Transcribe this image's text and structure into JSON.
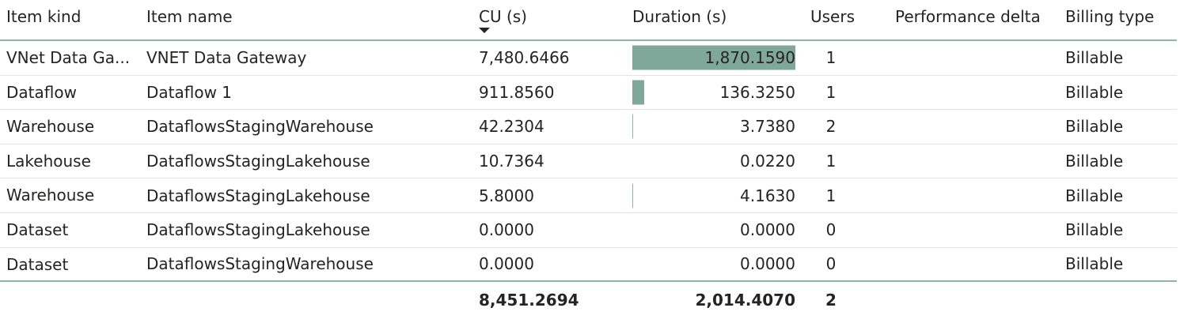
{
  "headers": {
    "item_kind": "Item kind",
    "item_name": "Item name",
    "cu": "CU (s)",
    "duration": "Duration (s)",
    "users": "Users",
    "performance_delta": "Performance delta",
    "billing_type": "Billing type"
  },
  "sort": {
    "column": "CU (s)",
    "direction": "descending",
    "icon": "sort-down-icon"
  },
  "rows": [
    {
      "kind": "VNet Data Ga...",
      "name": "VNET Data Gateway",
      "cu": "7,480.6466",
      "duration": "1,870.1590",
      "duration_bar_fraction": 1.0,
      "users": "1",
      "perf": "",
      "billing": "Billable"
    },
    {
      "kind": "Dataflow",
      "name": "Dataflow 1",
      "cu": "911.8560",
      "duration": "136.3250",
      "duration_bar_fraction": 0.0729,
      "users": "1",
      "perf": "",
      "billing": "Billable"
    },
    {
      "kind": "Warehouse",
      "name": "DataflowsStagingWarehouse",
      "cu": "42.2304",
      "duration": "3.7380",
      "duration_bar_fraction": 0.002,
      "users": "2",
      "perf": "",
      "billing": "Billable"
    },
    {
      "kind": "Lakehouse",
      "name": "DataflowsStagingLakehouse",
      "cu": "10.7364",
      "duration": "0.0220",
      "duration_bar_fraction": 0.0,
      "users": "1",
      "perf": "",
      "billing": "Billable"
    },
    {
      "kind": "Warehouse",
      "name": "DataflowsStagingLakehouse",
      "cu": "5.8000",
      "duration": "4.1630",
      "duration_bar_fraction": 0.0022,
      "users": "1",
      "perf": "",
      "billing": "Billable"
    },
    {
      "kind": "Dataset",
      "name": "DataflowsStagingLakehouse",
      "cu": "0.0000",
      "duration": "0.0000",
      "duration_bar_fraction": 0.0,
      "users": "0",
      "perf": "",
      "billing": "Billable"
    },
    {
      "kind": "Dataset",
      "name": "DataflowsStagingWarehouse",
      "cu": "0.0000",
      "duration": "0.0000",
      "duration_bar_fraction": 0.0,
      "users": "0",
      "perf": "",
      "billing": "Billable"
    }
  ],
  "totals": {
    "cu": "8,451.2694",
    "duration": "2,014.4070",
    "users": "2"
  },
  "colors": {
    "data_bar": "#7fa89a",
    "header_rule": "#8fb5a8",
    "row_divider": "#e3e3e3",
    "text": "#252423"
  }
}
